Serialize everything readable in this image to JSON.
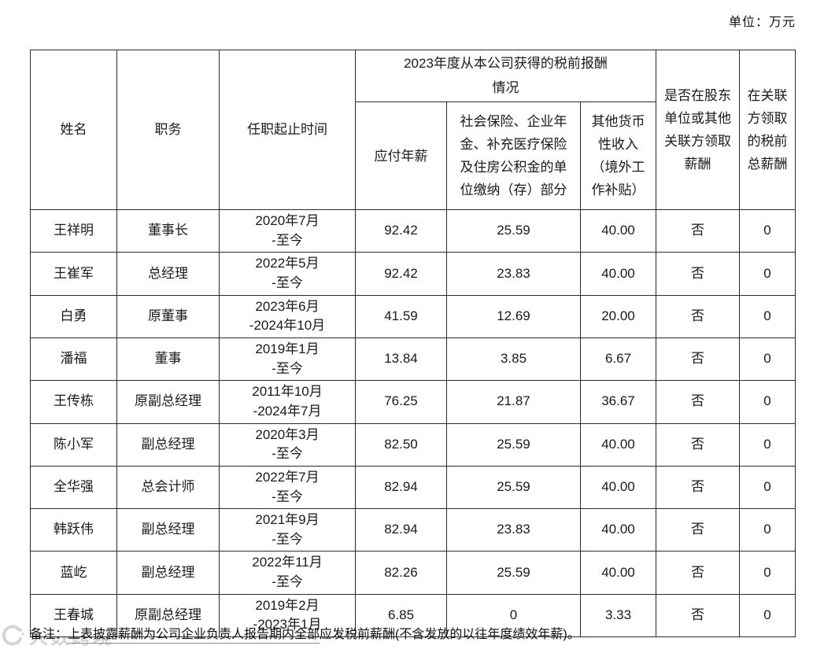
{
  "page": {
    "unit_label": "单位：万元"
  },
  "table": {
    "headers": {
      "name": "姓名",
      "position": "职务",
      "tenure": "任职起止时间",
      "comp_group_lines": [
        "2023年度从本公司获得的税前报酬",
        "情况"
      ],
      "salary": "应付年薪",
      "social": "社会保险、企业年金、补充医疗保险及住房公积金的单位缴纳（存）部分",
      "other": "其他货币性收入（境外工作补贴）",
      "related_paid": "是否在股东单位或其他关联方领取薪酬",
      "related_total": "在关联方领取的税前总薪酬"
    },
    "rows": [
      {
        "name": "王祥明",
        "position": "董事长",
        "tenure_from": "2020年7月",
        "tenure_to": "-至今",
        "salary": "92.42",
        "social": "25.59",
        "other": "40.00",
        "related_paid": "否",
        "related_total": "0"
      },
      {
        "name": "王崔军",
        "position": "总经理",
        "tenure_from": "2022年5月",
        "tenure_to": "-至今",
        "salary": "92.42",
        "social": "23.83",
        "other": "40.00",
        "related_paid": "否",
        "related_total": "0"
      },
      {
        "name": "白勇",
        "position": "原董事",
        "tenure_from": "2023年6月",
        "tenure_to": "-2024年10月",
        "salary": "41.59",
        "social": "12.69",
        "other": "20.00",
        "related_paid": "否",
        "related_total": "0"
      },
      {
        "name": "潘福",
        "position": "董事",
        "tenure_from": "2019年1月",
        "tenure_to": "-至今",
        "salary": "13.84",
        "social": "3.85",
        "other": "6.67",
        "related_paid": "否",
        "related_total": "0"
      },
      {
        "name": "王传栋",
        "position": "原副总经理",
        "tenure_from": "2011年10月",
        "tenure_to": "-2024年7月",
        "salary": "76.25",
        "social": "21.87",
        "other": "36.67",
        "related_paid": "否",
        "related_total": "0"
      },
      {
        "name": "陈小军",
        "position": "副总经理",
        "tenure_from": "2020年3月",
        "tenure_to": "-至今",
        "salary": "82.50",
        "social": "25.59",
        "other": "40.00",
        "related_paid": "否",
        "related_total": "0"
      },
      {
        "name": "全华强",
        "position": "总会计师",
        "tenure_from": "2022年7月",
        "tenure_to": "-至今",
        "salary": "82.94",
        "social": "25.59",
        "other": "40.00",
        "related_paid": "否",
        "related_total": "0"
      },
      {
        "name": "韩跃伟",
        "position": "副总经理",
        "tenure_from": "2021年9月",
        "tenure_to": "-至今",
        "salary": "82.94",
        "social": "23.83",
        "other": "40.00",
        "related_paid": "否",
        "related_total": "0"
      },
      {
        "name": "蓝屹",
        "position": "副总经理",
        "tenure_from": "2022年11月",
        "tenure_to": "-至今",
        "salary": "82.26",
        "social": "25.59",
        "other": "40.00",
        "related_paid": "否",
        "related_total": "0"
      },
      {
        "name": "王春城",
        "position": "原副总经理",
        "tenure_from": "2019年2月",
        "tenure_to": "-2023年1月",
        "salary": "6.85",
        "social": "0",
        "other": "3.33",
        "related_paid": "否",
        "related_total": "0"
      }
    ]
  },
  "note": {
    "prefix": "备注：",
    "underlined": "上表披露薪酬为公司企业负责人报告期内全部",
    "rest": "应发税前薪酬(不含发放的以往年度绩效年薪)。"
  },
  "watermark": {
    "text": "大数跨境"
  },
  "colors": {
    "border": "#2b2b2b",
    "text": "#1a1a1a",
    "watermark": "#cdcdcd"
  }
}
